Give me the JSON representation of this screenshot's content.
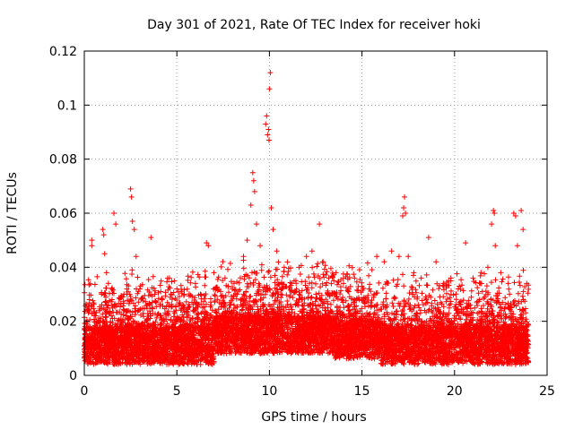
{
  "chart_data": {
    "type": "scatter",
    "title": "Day 301 of 2021, Rate Of TEC Index for receiver hoki",
    "xlabel": "GPS time / hours",
    "ylabel": "ROTI / TECUs",
    "xlim": [
      0,
      25
    ],
    "ylim": [
      0,
      0.12
    ],
    "x_ticks": [
      0,
      5,
      10,
      15,
      20,
      25
    ],
    "x_tick_labels": [
      "0",
      "5",
      "10",
      "15",
      "20",
      "25"
    ],
    "y_ticks": [
      0,
      0.02,
      0.04,
      0.06,
      0.08,
      0.1,
      0.12
    ],
    "y_tick_labels": [
      "0",
      "0.02",
      "0.04",
      "0.06",
      "0.08",
      "0.1",
      "0.12"
    ],
    "grid": true,
    "marker": "plus",
    "color": "#ff0000",
    "series": [
      {
        "points": [
          [
            0.1,
            0.012
          ],
          [
            0.3,
            0.018
          ],
          [
            0.4,
            0.048
          ],
          [
            0.4,
            0.05
          ],
          [
            0.6,
            0.022
          ],
          [
            0.8,
            0.016
          ],
          [
            1.0,
            0.054
          ],
          [
            1.05,
            0.052
          ],
          [
            1.1,
            0.045
          ],
          [
            1.2,
            0.038
          ],
          [
            1.3,
            0.034
          ],
          [
            1.5,
            0.028
          ],
          [
            1.6,
            0.06
          ],
          [
            1.7,
            0.056
          ],
          [
            2.0,
            0.02
          ],
          [
            2.3,
            0.03
          ],
          [
            2.5,
            0.069
          ],
          [
            2.55,
            0.066
          ],
          [
            2.6,
            0.057
          ],
          [
            2.7,
            0.054
          ],
          [
            2.8,
            0.044
          ],
          [
            3.0,
            0.032
          ],
          [
            3.4,
            0.026
          ],
          [
            3.6,
            0.051
          ],
          [
            3.8,
            0.03
          ],
          [
            4.2,
            0.028
          ],
          [
            4.6,
            0.036
          ],
          [
            5.0,
            0.032
          ],
          [
            5.4,
            0.03
          ],
          [
            6.0,
            0.034
          ],
          [
            6.6,
            0.049
          ],
          [
            6.7,
            0.048
          ],
          [
            7.0,
            0.038
          ],
          [
            7.6,
            0.036
          ],
          [
            8.0,
            0.032
          ],
          [
            8.6,
            0.044
          ],
          [
            8.8,
            0.05
          ],
          [
            9.0,
            0.063
          ],
          [
            9.1,
            0.075
          ],
          [
            9.15,
            0.072
          ],
          [
            9.2,
            0.068
          ],
          [
            9.3,
            0.056
          ],
          [
            9.5,
            0.048
          ],
          [
            9.8,
            0.093
          ],
          [
            9.85,
            0.096
          ],
          [
            9.9,
            0.089
          ],
          [
            9.95,
            0.091
          ],
          [
            9.98,
            0.087
          ],
          [
            10.0,
            0.106
          ],
          [
            10.05,
            0.112
          ],
          [
            10.1,
            0.062
          ],
          [
            10.2,
            0.054
          ],
          [
            10.4,
            0.046
          ],
          [
            10.8,
            0.04
          ],
          [
            11.2,
            0.034
          ],
          [
            11.6,
            0.04
          ],
          [
            12.0,
            0.044
          ],
          [
            12.3,
            0.046
          ],
          [
            12.7,
            0.056
          ],
          [
            12.9,
            0.042
          ],
          [
            13.2,
            0.036
          ],
          [
            13.6,
            0.038
          ],
          [
            14.0,
            0.034
          ],
          [
            14.6,
            0.036
          ],
          [
            15.0,
            0.033
          ],
          [
            15.4,
            0.032
          ],
          [
            15.8,
            0.044
          ],
          [
            16.2,
            0.042
          ],
          [
            16.6,
            0.046
          ],
          [
            17.0,
            0.044
          ],
          [
            17.2,
            0.059
          ],
          [
            17.25,
            0.062
          ],
          [
            17.3,
            0.066
          ],
          [
            17.35,
            0.06
          ],
          [
            17.5,
            0.044
          ],
          [
            17.8,
            0.038
          ],
          [
            18.2,
            0.036
          ],
          [
            18.6,
            0.051
          ],
          [
            19.0,
            0.042
          ],
          [
            19.4,
            0.034
          ],
          [
            19.8,
            0.036
          ],
          [
            20.2,
            0.032
          ],
          [
            20.6,
            0.049
          ],
          [
            21.0,
            0.036
          ],
          [
            21.4,
            0.034
          ],
          [
            21.8,
            0.04
          ],
          [
            22.0,
            0.056
          ],
          [
            22.1,
            0.061
          ],
          [
            22.15,
            0.06
          ],
          [
            22.2,
            0.048
          ],
          [
            22.5,
            0.038
          ],
          [
            22.9,
            0.034
          ],
          [
            23.2,
            0.06
          ],
          [
            23.3,
            0.059
          ],
          [
            23.4,
            0.048
          ],
          [
            23.6,
            0.061
          ],
          [
            23.7,
            0.054
          ],
          [
            23.9,
            0.034
          ]
        ]
      }
    ]
  }
}
